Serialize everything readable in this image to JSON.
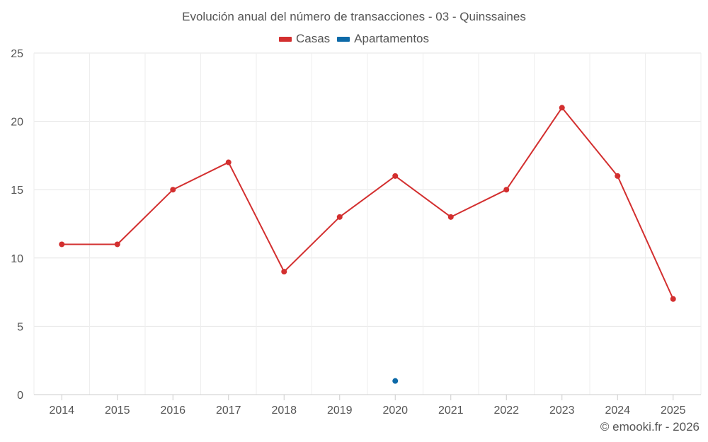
{
  "chart_data": {
    "type": "line",
    "title": "Evolución anual del número de transacciones - 03 - Quinssaines",
    "categories": [
      "2014",
      "2015",
      "2016",
      "2017",
      "2018",
      "2019",
      "2020",
      "2021",
      "2022",
      "2023",
      "2024",
      "2025"
    ],
    "series": [
      {
        "name": "Casas",
        "color": "#d32f2f",
        "values": [
          11,
          11,
          15,
          17,
          9,
          13,
          16,
          13,
          15,
          21,
          16,
          7
        ]
      },
      {
        "name": "Apartamentos",
        "color": "#0d6aa8",
        "values": [
          null,
          null,
          null,
          null,
          null,
          null,
          1,
          null,
          null,
          null,
          null,
          null
        ]
      }
    ],
    "y_ticks": [
      "0",
      "5",
      "10",
      "15",
      "20",
      "25"
    ],
    "ylim": [
      0,
      25
    ],
    "xlabel": "",
    "ylabel": "",
    "grid": true,
    "legend_position": "top-center",
    "credit": "© emooki.fr - 2026"
  }
}
